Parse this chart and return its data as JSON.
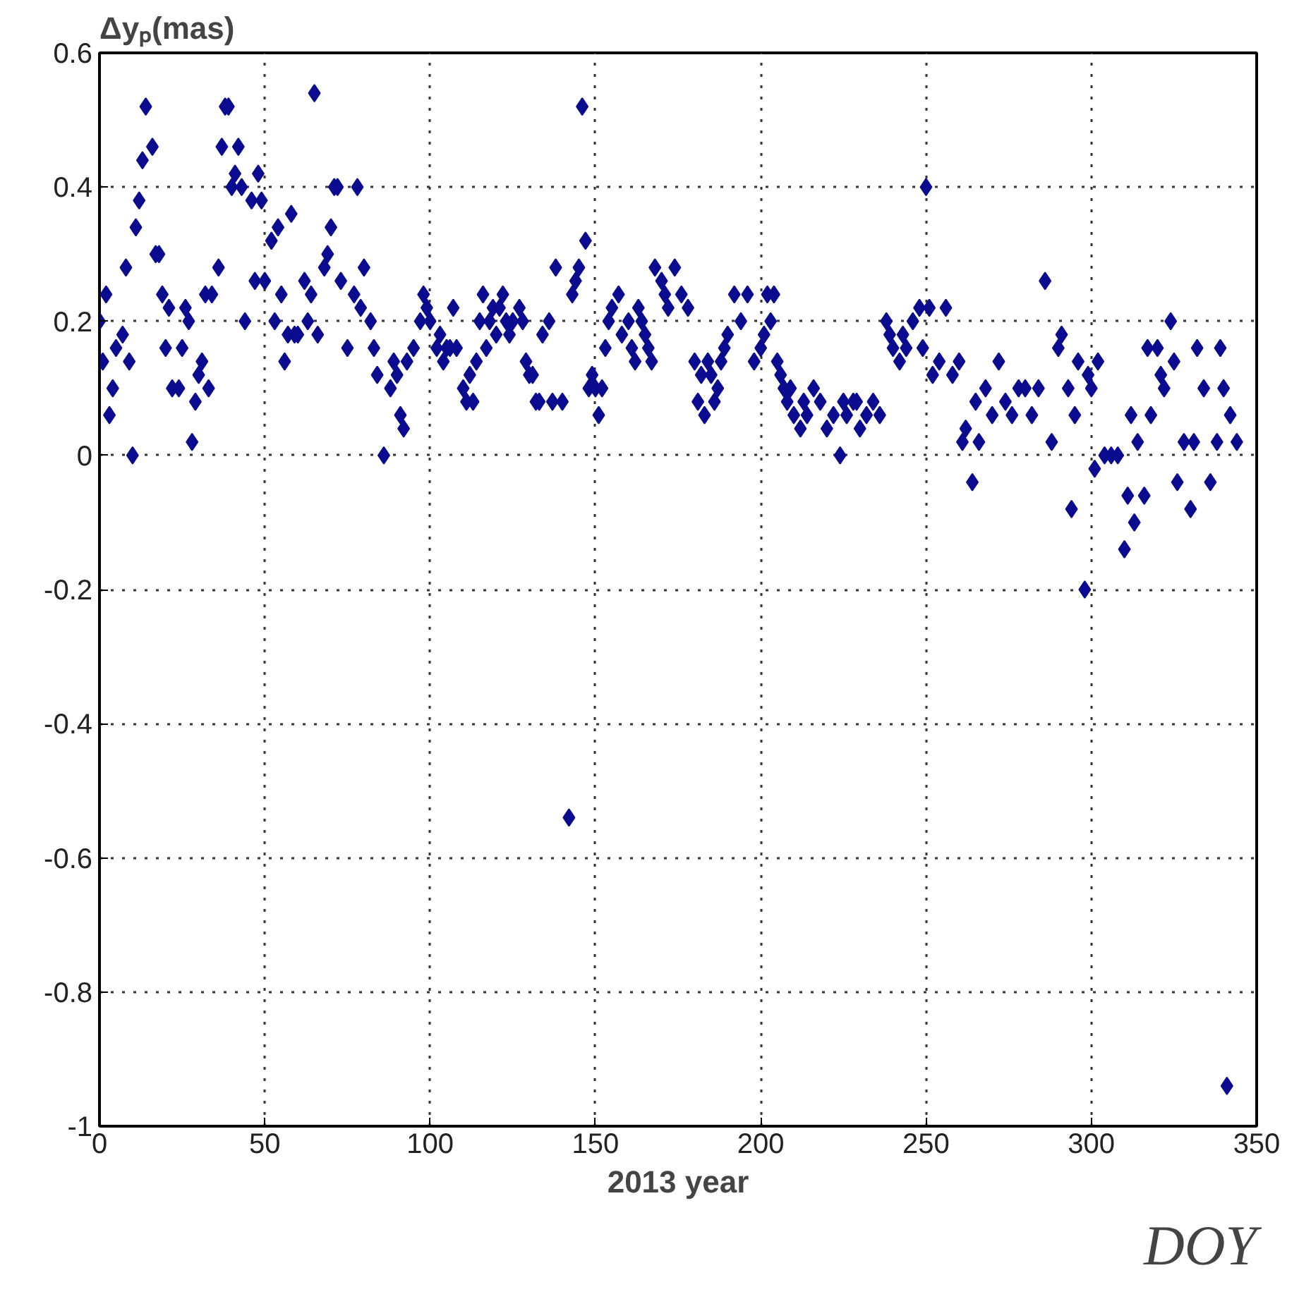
{
  "chart_data": {
    "type": "scatter",
    "ylabel": "Δyₚ(mas)",
    "xlabel": "2013 year",
    "annotations": [
      "DOY"
    ],
    "marker": "diamond",
    "grid": true,
    "line_style": "dotted",
    "xlim": [
      0,
      350
    ],
    "xticks": [
      0,
      50,
      100,
      150,
      200,
      250,
      300,
      350
    ],
    "ylim": [
      -1,
      0.6
    ],
    "yticks": [
      -1,
      -0.8,
      -0.6,
      -0.4,
      -0.2,
      0,
      0.2,
      0.4,
      0.6
    ],
    "series": [
      {
        "color": "#0b0b8f",
        "x": [
          0,
          1,
          2,
          3,
          4,
          5,
          7,
          8,
          9,
          10,
          11,
          12,
          13,
          14,
          16,
          17,
          18,
          19,
          20,
          21,
          22,
          24,
          25,
          26,
          27,
          28,
          29,
          30,
          31,
          32,
          33,
          34,
          36,
          37,
          38,
          39,
          40,
          41,
          42,
          43,
          44,
          46,
          47,
          48,
          49,
          50,
          52,
          53,
          54,
          55,
          56,
          57,
          58,
          59,
          60,
          62,
          63,
          64,
          65,
          66,
          68,
          69,
          70,
          71,
          72,
          73,
          75,
          77,
          78,
          79,
          80,
          82,
          83,
          84,
          86,
          88,
          89,
          90,
          91,
          92,
          93,
          95,
          97,
          98,
          99,
          100,
          102,
          103,
          104,
          105,
          106,
          107,
          108,
          110,
          111,
          112,
          113,
          114,
          115,
          116,
          117,
          118,
          119,
          120,
          121,
          122,
          123,
          124,
          125,
          127,
          128,
          129,
          130,
          131,
          132,
          133,
          134,
          136,
          137,
          138,
          140,
          142,
          143,
          144,
          145,
          146,
          147,
          148,
          149,
          150,
          151,
          152,
          153,
          154,
          155,
          157,
          158,
          160,
          161,
          162,
          163,
          164,
          165,
          166,
          167,
          168,
          170,
          171,
          172,
          174,
          176,
          178,
          180,
          181,
          182,
          183,
          184,
          185,
          186,
          187,
          188,
          189,
          190,
          192,
          194,
          196,
          198,
          200,
          201,
          202,
          203,
          204,
          205,
          206,
          207,
          208,
          209,
          210,
          212,
          213,
          214,
          216,
          218,
          220,
          222,
          224,
          225,
          226,
          228,
          229,
          230,
          232,
          234,
          236,
          238,
          239,
          240,
          242,
          243,
          244,
          246,
          248,
          249,
          250,
          251,
          252,
          254,
          256,
          258,
          260,
          261,
          262,
          264,
          265,
          266,
          268,
          270,
          272,
          274,
          276,
          278,
          280,
          282,
          284,
          286,
          288,
          290,
          291,
          293,
          294,
          295,
          296,
          298,
          299,
          300,
          301,
          302,
          304,
          306,
          308,
          310,
          311,
          312,
          313,
          314,
          316,
          317,
          318,
          320,
          321,
          322,
          324,
          325,
          326,
          328,
          330,
          331,
          332,
          334,
          336,
          338,
          339,
          340,
          341,
          342,
          344
        ],
        "values": [
          0.2,
          0.14,
          0.24,
          0.06,
          0.1,
          0.16,
          0.18,
          0.28,
          0.14,
          0,
          0.34,
          0.38,
          0.44,
          0.52,
          0.46,
          0.3,
          0.3,
          0.24,
          0.16,
          0.22,
          0.1,
          0.1,
          0.16,
          0.22,
          0.2,
          0.02,
          0.08,
          0.12,
          0.14,
          0.24,
          0.1,
          0.24,
          0.28,
          0.46,
          0.52,
          0.52,
          0.4,
          0.42,
          0.46,
          0.4,
          0.2,
          0.38,
          0.26,
          0.42,
          0.38,
          0.26,
          0.32,
          0.2,
          0.34,
          0.24,
          0.14,
          0.18,
          0.36,
          0.18,
          0.18,
          0.26,
          0.2,
          0.24,
          0.54,
          0.18,
          0.28,
          0.3,
          0.34,
          0.4,
          0.4,
          0.26,
          0.16,
          0.24,
          0.4,
          0.22,
          0.28,
          0.2,
          0.16,
          0.12,
          0,
          0.1,
          0.14,
          0.12,
          0.06,
          0.04,
          0.14,
          0.16,
          0.2,
          0.24,
          0.22,
          0.2,
          0.16,
          0.18,
          0.14,
          0.16,
          0.16,
          0.22,
          0.16,
          0.1,
          0.08,
          0.12,
          0.08,
          0.14,
          0.2,
          0.24,
          0.16,
          0.2,
          0.22,
          0.18,
          0.22,
          0.24,
          0.2,
          0.18,
          0.2,
          0.22,
          0.2,
          0.14,
          0.12,
          0.12,
          0.08,
          0.08,
          0.18,
          0.2,
          0.08,
          0.28,
          0.08,
          -0.54,
          0.24,
          0.26,
          0.28,
          0.52,
          0.32,
          0.1,
          0.12,
          0.1,
          0.06,
          0.1,
          0.16,
          0.2,
          0.22,
          0.24,
          0.18,
          0.2,
          0.16,
          0.14,
          0.22,
          0.2,
          0.18,
          0.16,
          0.14,
          0.28,
          0.26,
          0.24,
          0.22,
          0.28,
          0.24,
          0.22,
          0.14,
          0.08,
          0.12,
          0.06,
          0.14,
          0.12,
          0.08,
          0.1,
          0.14,
          0.16,
          0.18,
          0.24,
          0.2,
          0.24,
          0.14,
          0.16,
          0.18,
          0.24,
          0.2,
          0.24,
          0.14,
          0.12,
          0.1,
          0.08,
          0.1,
          0.06,
          0.04,
          0.08,
          0.06,
          0.1,
          0.08,
          0.04,
          0.06,
          0,
          0.08,
          0.06,
          0.08,
          0.08,
          0.04,
          0.06,
          0.08,
          0.06,
          0.2,
          0.18,
          0.16,
          0.14,
          0.18,
          0.16,
          0.2,
          0.22,
          0.16,
          0.4,
          0.22,
          0.12,
          0.14,
          0.22,
          0.12,
          0.14,
          0.02,
          0.04,
          -0.04,
          0.08,
          0.02,
          0.1,
          0.06,
          0.14,
          0.08,
          0.06,
          0.1,
          0.1,
          0.06,
          0.1,
          0.26,
          0.02,
          0.16,
          0.18,
          0.1,
          -0.08,
          0.06,
          0.14,
          -0.2,
          0.12,
          0.1,
          -0.02,
          0.14,
          0,
          0,
          0,
          -0.14,
          -0.06,
          0.06,
          -0.1,
          0.02,
          -0.06,
          0.16,
          0.06,
          0.16,
          0.12,
          0.1,
          0.2,
          0.14,
          -0.04,
          0.02,
          -0.08,
          0.02,
          0.16,
          0.1,
          -0.04,
          0.02,
          0.16,
          0.1,
          -0.94,
          0.06,
          0.02
        ]
      }
    ]
  }
}
